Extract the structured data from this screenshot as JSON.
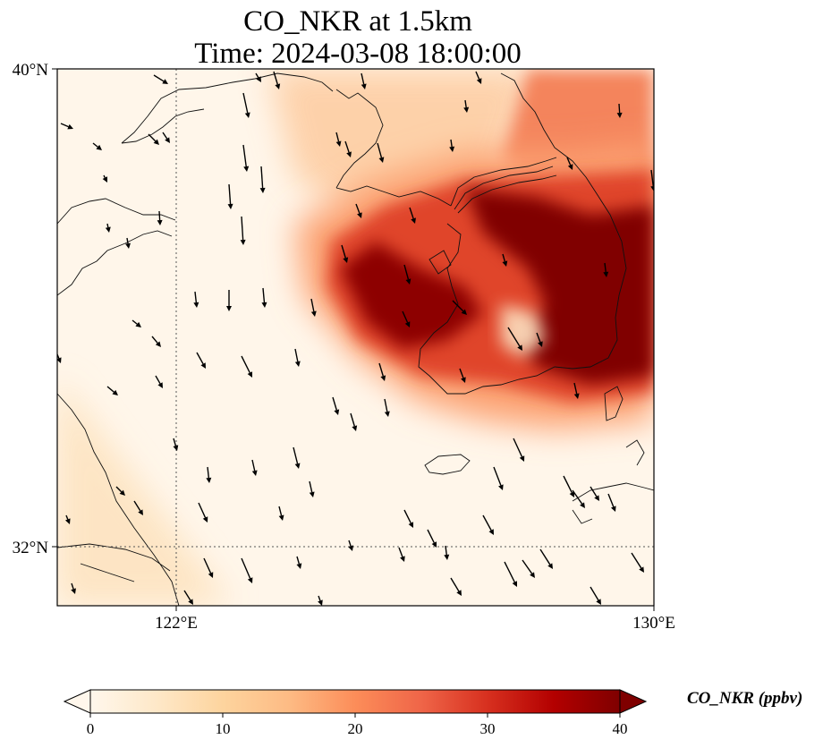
{
  "title": {
    "line1": "CO_NKR at 1.5km",
    "line2": "Time: 2024-03-08 18:00:00"
  },
  "map": {
    "lon_range": [
      120,
      130
    ],
    "lat_range": [
      31,
      40
    ],
    "lat_ticks": [
      {
        "value": 40,
        "label": "40°N"
      },
      {
        "value": 32,
        "label": "32°N"
      }
    ],
    "lon_ticks": [
      {
        "value": 122,
        "label": "122°E"
      },
      {
        "value": 130,
        "label": "130°E"
      }
    ],
    "gridlines": {
      "lon": [
        122
      ],
      "lat": [
        32
      ]
    }
  },
  "colorbar": {
    "label": "CO_NKR (ppbv)",
    "min": 0,
    "max": 40,
    "ticks": [
      {
        "value": 0,
        "label": "0"
      },
      {
        "value": 10,
        "label": "10"
      },
      {
        "value": 20,
        "label": "20"
      },
      {
        "value": 30,
        "label": "30"
      },
      {
        "value": 40,
        "label": "40"
      }
    ],
    "colormap": "OrRd",
    "extend": "both",
    "colors": [
      "#fff7ec",
      "#fee8c8",
      "#fdd49e",
      "#fdbb84",
      "#fc8d59",
      "#ef6548",
      "#d7301f",
      "#b30000",
      "#7f0000"
    ]
  }
}
